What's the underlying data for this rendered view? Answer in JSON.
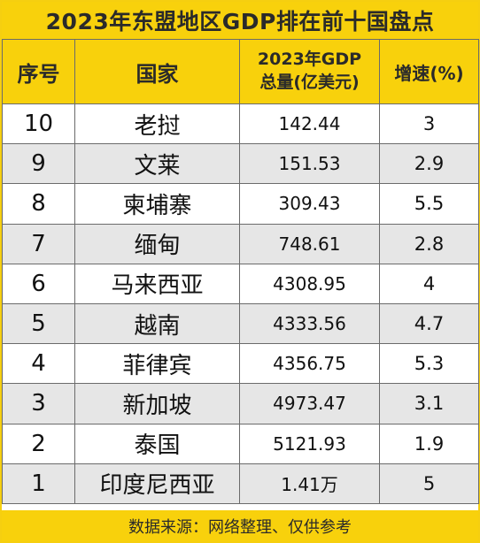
{
  "title": "2023年东盟地区GDP排在前十国盘点",
  "headers": {
    "rank": "序号",
    "country": "国家",
    "gdp_line1": "2023年GDP",
    "gdp_line2": "总量(亿美元)",
    "speed": "增速(%)"
  },
  "rows": [
    {
      "rank": "10",
      "country": "老挝",
      "gdp": "142.44",
      "speed": "3"
    },
    {
      "rank": "9",
      "country": "文莱",
      "gdp": "151.53",
      "speed": "2.9"
    },
    {
      "rank": "8",
      "country": "柬埔寨",
      "gdp": "309.43",
      "speed": "5.5"
    },
    {
      "rank": "7",
      "country": "缅甸",
      "gdp": "748.61",
      "speed": "2.8"
    },
    {
      "rank": "6",
      "country": "马来西亚",
      "gdp": "4308.95",
      "speed": "4"
    },
    {
      "rank": "5",
      "country": "越南",
      "gdp": "4333.56",
      "speed": "4.7"
    },
    {
      "rank": "4",
      "country": "菲律宾",
      "gdp": "4356.75",
      "speed": "5.3"
    },
    {
      "rank": "3",
      "country": "新加坡",
      "gdp": "4973.47",
      "speed": "3.1"
    },
    {
      "rank": "2",
      "country": "泰国",
      "gdp": "5121.93",
      "speed": "1.9"
    },
    {
      "rank": "1",
      "country": "印度尼西亚",
      "gdp": "1.41万",
      "speed": "5"
    }
  ],
  "footer": "数据来源：网络整理、仅供参考"
}
